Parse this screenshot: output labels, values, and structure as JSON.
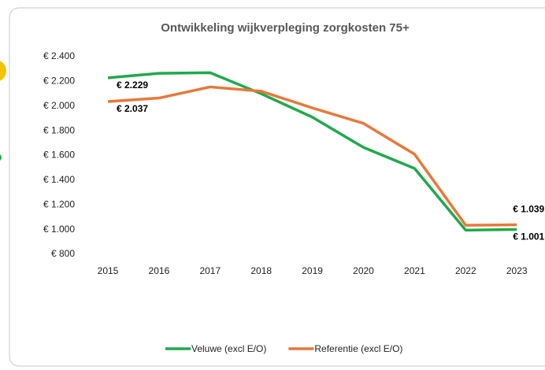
{
  "chart_data": {
    "type": "line",
    "title": "Ontwikkeling wijkverpleging zorgkosten 75+",
    "categories": [
      "2015",
      "2016",
      "2017",
      "2018",
      "2019",
      "2020",
      "2021",
      "2022",
      "2023"
    ],
    "series": [
      {
        "name": "Veluwe (excl E/O)",
        "color": "#1faa4b",
        "values": [
          2229,
          2265,
          2270,
          2100,
          1910,
          1665,
          1495,
          995,
          1001
        ],
        "value_labels": [
          "€ 2.229",
          null,
          null,
          null,
          null,
          null,
          null,
          null,
          "€ 1.001"
        ]
      },
      {
        "name": "Referentie (excl E/O)",
        "color": "#e8783a",
        "values": [
          2037,
          2065,
          2155,
          2120,
          1985,
          1860,
          1610,
          1035,
          1039
        ],
        "value_labels": [
          "€ 2.037",
          null,
          null,
          null,
          null,
          null,
          null,
          null,
          "€ 1.039"
        ]
      }
    ],
    "ylim": [
      800,
      2400
    ],
    "yticks": [
      {
        "value": 800,
        "label": "€ 800"
      },
      {
        "value": 1000,
        "label": "€ 1.000"
      },
      {
        "value": 1200,
        "label": "€ 1.200"
      },
      {
        "value": 1400,
        "label": "€ 1.400"
      },
      {
        "value": 1600,
        "label": "€ 1.600"
      },
      {
        "value": 1800,
        "label": "€ 1.800"
      },
      {
        "value": 2000,
        "label": "€ 2.000"
      },
      {
        "value": 2200,
        "label": "€ 2.200"
      },
      {
        "value": 2400,
        "label": "€ 2.400"
      }
    ],
    "legend": "bottom"
  }
}
